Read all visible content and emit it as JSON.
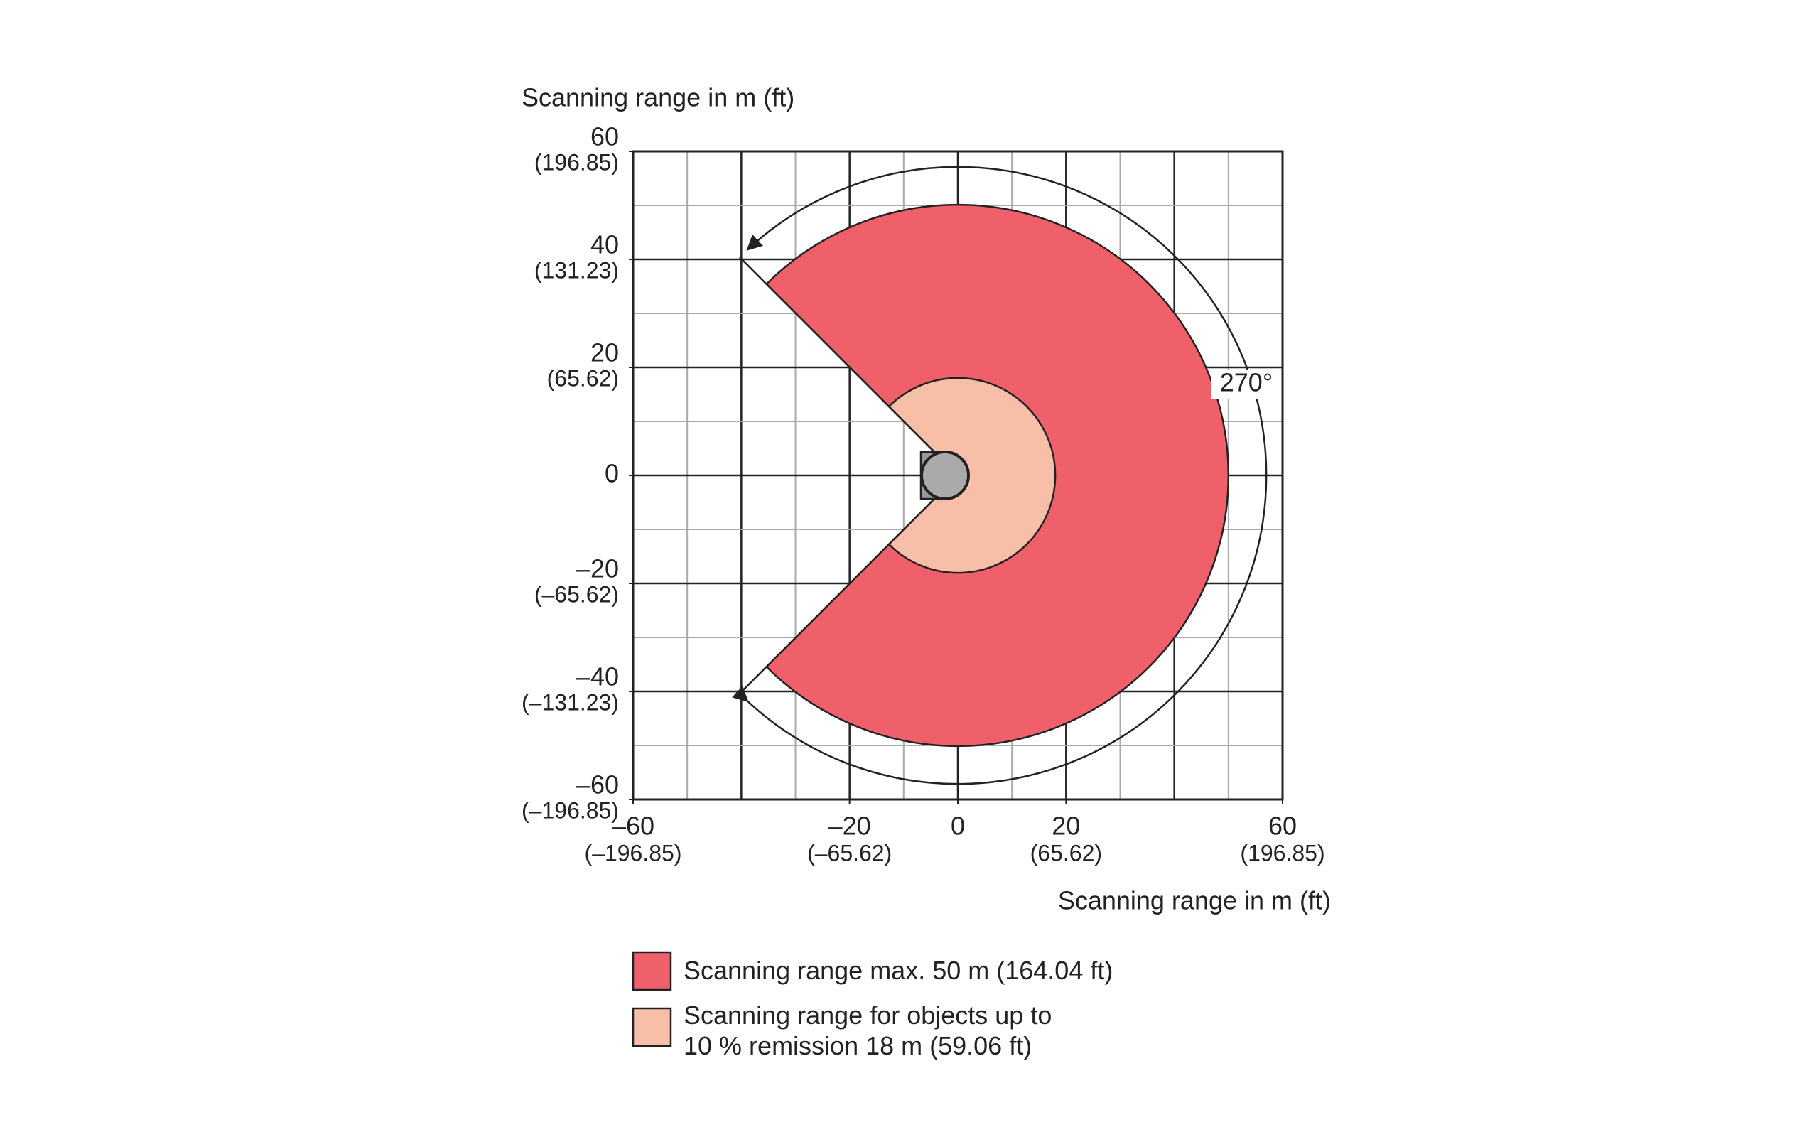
{
  "chart_data": {
    "type": "sector",
    "xlabel": "Scanning range in m (ft)",
    "ylabel": "Scanning range in m (ft)",
    "xlim": [
      -60,
      60
    ],
    "ylim": [
      -60,
      60
    ],
    "xticks": [
      {
        "value": -60,
        "label": "–60",
        "label_ft": "(–196.85)"
      },
      {
        "value": -20,
        "label": "–20",
        "label_ft": "(–65.62)"
      },
      0,
      {
        "value": 20,
        "label": "20",
        "label_ft": "(65.62)"
      },
      {
        "value": 60,
        "label": "60",
        "label_ft": "(196.85)"
      }
    ],
    "yticks": [
      {
        "value": 60,
        "label": "60",
        "label_ft": "(196.85)"
      },
      {
        "value": 40,
        "label": "40",
        "label_ft": "(131.23)"
      },
      {
        "value": 20,
        "label": "20",
        "label_ft": "(65.62)"
      },
      0,
      {
        "value": -20,
        "label": "–20",
        "label_ft": "(–65.62)"
      },
      {
        "value": -40,
        "label": "–40",
        "label_ft": "(–131.23)"
      },
      {
        "value": -60,
        "label": "–60",
        "label_ft": "(–196.85)"
      }
    ],
    "grid_step": 10,
    "angle": 270,
    "angle_label": "270°",
    "series": [
      {
        "name": "Scanning range max. 50 m (164.04 ft)",
        "color": "#f0606a",
        "value": 50
      },
      {
        "name": "Scanning range for objects up to\n10 % remission 18 m (59.06 ft)",
        "color": "#f8bfa8",
        "value": 18
      }
    ]
  }
}
